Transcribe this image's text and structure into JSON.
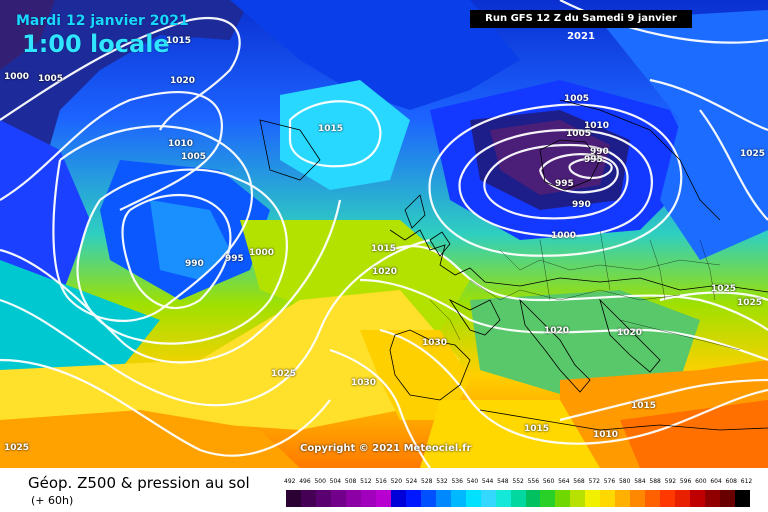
{
  "header": {
    "date": "Mardi 12 janvier 2021",
    "time": "1:00 locale",
    "run": "Run GFS 12 Z du Samedi 9 janvier 2021"
  },
  "copyright": "Copyright © 2021 Meteociel.fr",
  "footer": {
    "title": "Géop. Z500 & pression au sol",
    "subtitle": "(+ 60h)"
  },
  "isobar_labels": [
    "1015",
    "1000",
    "1005",
    "1020",
    "1015",
    "1005",
    "1010",
    "1010",
    "1005",
    "1005",
    "995",
    "990",
    "990",
    "995",
    "1000",
    "1015",
    "1020",
    "1025",
    "990",
    "995",
    "1000",
    "1020",
    "1020",
    "1025",
    "1025",
    "1030",
    "1030",
    "1025",
    "1025",
    "1015",
    "1015",
    "1010"
  ],
  "scale": {
    "labels": [
      "492",
      "496",
      "500",
      "504",
      "508",
      "512",
      "516",
      "520",
      "524",
      "528",
      "532",
      "536",
      "540",
      "544",
      "548",
      "552",
      "556",
      "560",
      "564",
      "568",
      "572",
      "576",
      "580",
      "584",
      "588",
      "592",
      "596",
      "600",
      "604",
      "608",
      "612"
    ],
    "colors": [
      "#2b0033",
      "#450055",
      "#5b0070",
      "#72008a",
      "#8d00a6",
      "#a100bd",
      "#b800d0",
      "#0000d8",
      "#0018ff",
      "#0050ff",
      "#0088ff",
      "#00b8ff",
      "#00e0ff",
      "#34d8ff",
      "#14e8d8",
      "#00d8a0",
      "#00c060",
      "#28d028",
      "#70d800",
      "#b8e000",
      "#f0f000",
      "#ffd800",
      "#ffb000",
      "#ff8800",
      "#ff6000",
      "#ff3800",
      "#e82000",
      "#c00000",
      "#900000",
      "#680000",
      "#000000"
    ]
  }
}
